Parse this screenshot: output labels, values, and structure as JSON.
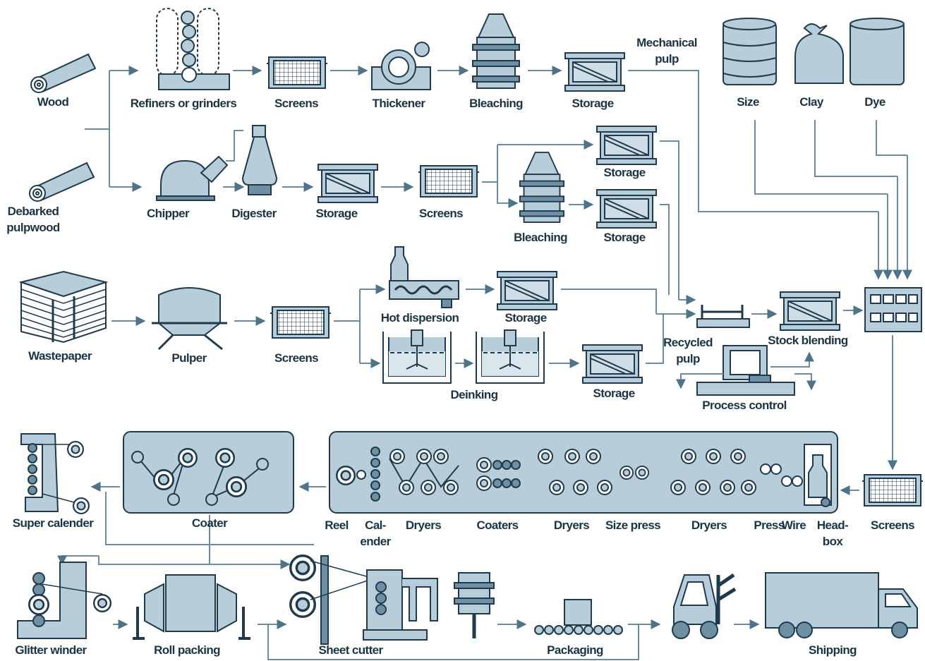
{
  "labels": {
    "wood": "Wood",
    "refiners": "Refiners or grinders",
    "screens_1": "Screens",
    "thickener": "Thickener",
    "bleaching_1": "Bleaching",
    "storage_1": "Storage",
    "mechanical_pulp": [
      "Mechanical",
      "pulp"
    ],
    "size": "Size",
    "clay": "Clay",
    "dye": "Dye",
    "debarked_pulpwood": [
      "Debarked",
      "pulpwood"
    ],
    "chipper": "Chipper",
    "digester": "Digester",
    "storage_2": "Storage",
    "screens_2": "Screens",
    "storage_3": "Storage",
    "bleaching_2": "Bleaching",
    "storage_4": "Storage",
    "wastepaper": "Wastepaper",
    "pulper": "Pulper",
    "screens_3": "Screens",
    "hot_dispersion": "Hot dispersion",
    "storage_5": "Storage",
    "deinking": "Deinking",
    "storage_6": "Storage",
    "recycled_pulp": [
      "Recycled",
      "pulp"
    ],
    "stock_blending": "Stock blending",
    "process_control": "Process control",
    "super_calender": "Super calender",
    "coater": "Coater",
    "reel": "Reel",
    "calender": [
      "Cal-",
      "ender"
    ],
    "dryers_1": "Dryers",
    "coaters": "Coaters",
    "dryers_2": "Dryers",
    "size_press": "Size press",
    "dryers_3": "Dryers",
    "press": "Press",
    "wire": "Wire",
    "headbox": [
      "Head-",
      "box"
    ],
    "screens_4": "Screens",
    "glitter_winder": "Glitter winder",
    "roll_packing": "Roll packing",
    "sheet_cutter": "Sheet cutter",
    "packaging": "Packaging",
    "shipping": "Shipping"
  }
}
